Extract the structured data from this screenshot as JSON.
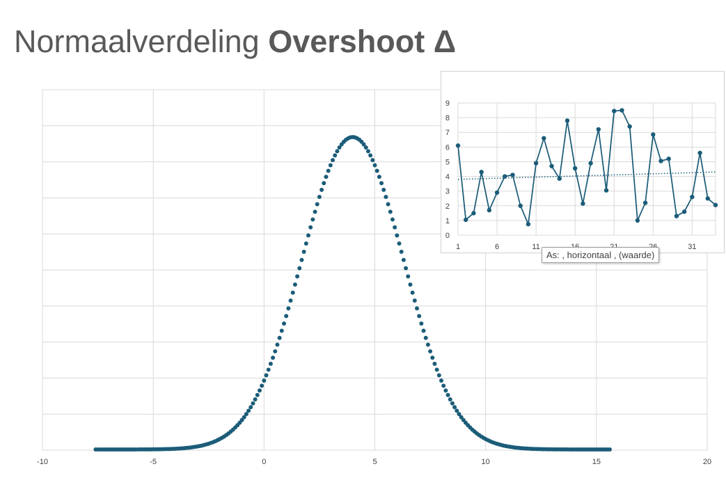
{
  "title": {
    "regular": "Normaalverdeling",
    "bold": "Overshoot Δ"
  },
  "tooltip": {
    "text": "As: , horizontaal , (waarde)"
  },
  "colors": {
    "series": "#1b5c78",
    "grid": "#d9d9d9",
    "title": "#595959"
  },
  "chart_data": [
    {
      "type": "scatter",
      "title": "",
      "xlabel": "",
      "ylabel": "",
      "xlim": [
        -10,
        20
      ],
      "x_ticks": [
        -10,
        -5,
        0,
        5,
        10,
        15,
        20
      ],
      "y_gridlines": 10,
      "grid": true,
      "y_tick_labels_shown": false,
      "distribution": {
        "mean": 4,
        "sd": 2.3,
        "x_start": -7.6,
        "x_end": 15.6,
        "step": 0.1
      }
    },
    {
      "type": "line",
      "title": "",
      "xlabel": "",
      "ylabel": "",
      "ylim": [
        0,
        9
      ],
      "y_ticks": [
        0,
        1,
        2,
        3,
        4,
        5,
        6,
        7,
        8,
        9
      ],
      "x_tick_labels": [
        "1",
        "6",
        "11",
        "16",
        "21",
        "26",
        "31"
      ],
      "grid": true,
      "markers": true,
      "x": [
        1,
        2,
        3,
        4,
        5,
        6,
        7,
        8,
        9,
        10,
        11,
        12,
        13,
        14,
        15,
        16,
        17,
        18,
        19,
        20,
        21,
        22,
        23,
        24,
        25,
        26,
        27,
        28,
        29,
        30,
        31,
        32,
        33,
        34
      ],
      "values": [
        6.1,
        1.05,
        1.5,
        4.3,
        1.7,
        2.9,
        4.0,
        4.1,
        2.0,
        0.75,
        4.9,
        6.6,
        4.7,
        3.85,
        7.8,
        4.55,
        2.15,
        4.9,
        7.2,
        3.05,
        8.45,
        8.5,
        7.4,
        1.0,
        2.2,
        6.85,
        5.05,
        5.2,
        1.3,
        1.6,
        2.6,
        5.6,
        2.5,
        2.05
      ],
      "trendline": {
        "type": "linear",
        "style": "dotted",
        "start": 3.8,
        "end": 4.3
      }
    }
  ]
}
